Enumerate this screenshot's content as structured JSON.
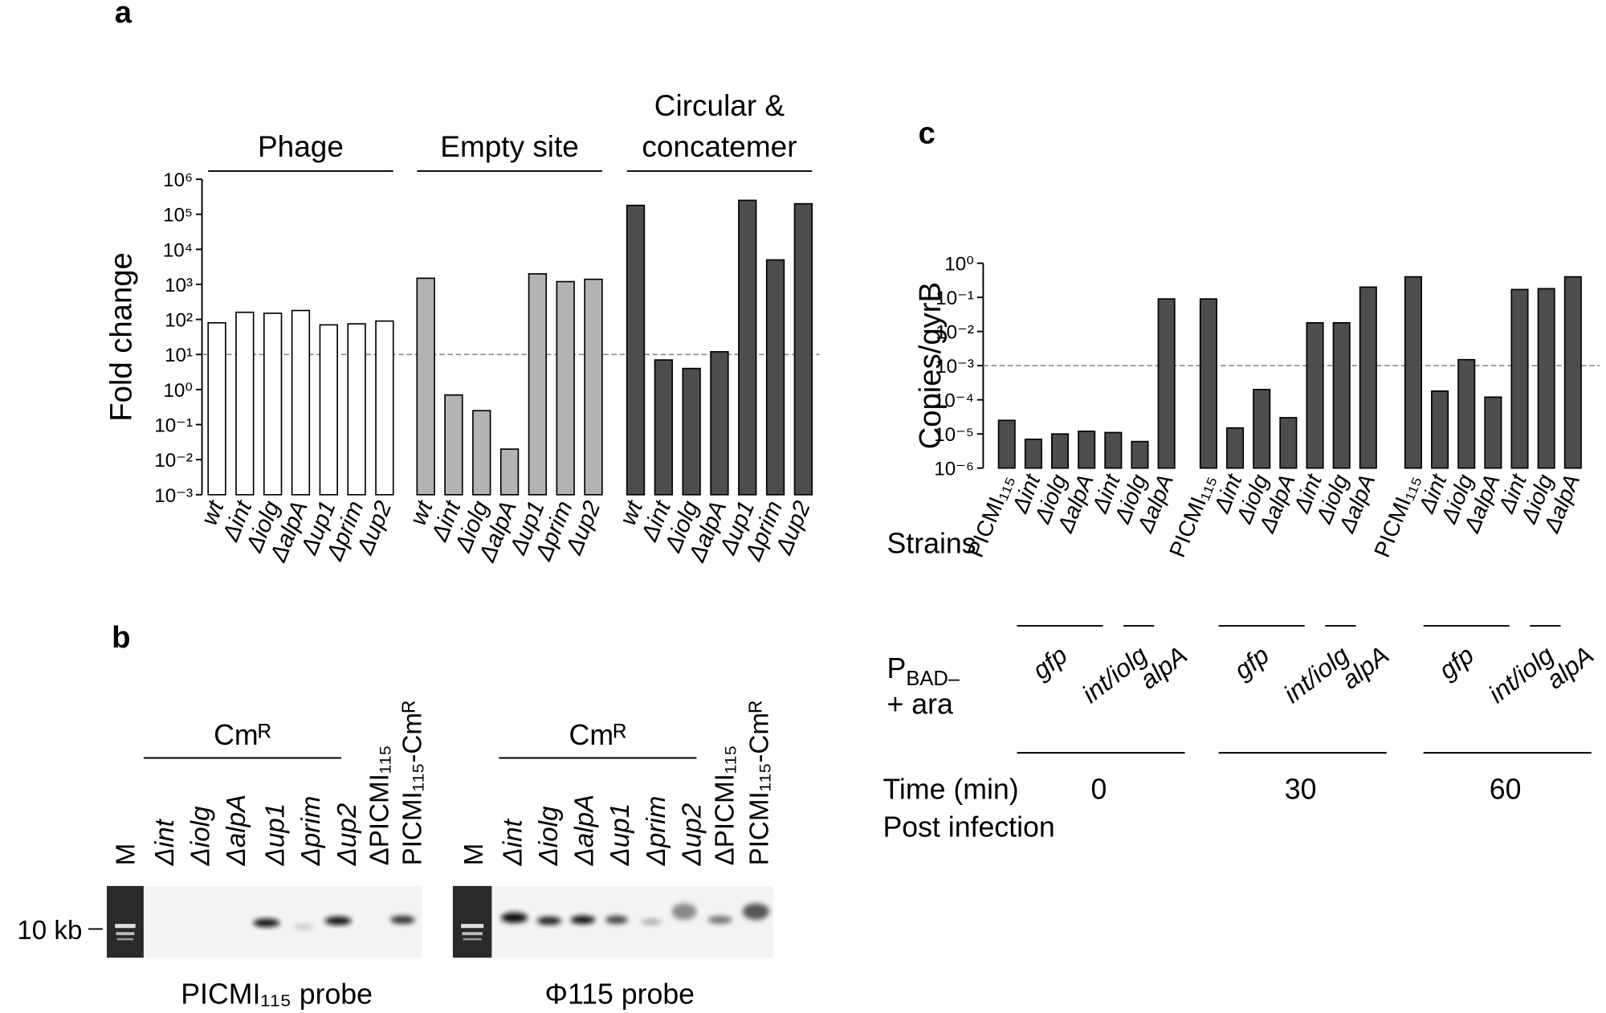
{
  "chart_data": [
    {
      "type": "bar",
      "panel": "a",
      "log_y": true,
      "ylabel": "Fold change",
      "ylim": [
        0.001,
        1000000
      ],
      "yticks": [
        {
          "value": 0.001,
          "label": "10⁻³"
        },
        {
          "value": 0.01,
          "label": "10⁻²"
        },
        {
          "value": 0.1,
          "label": "10⁻¹"
        },
        {
          "value": 1,
          "label": "10⁰"
        },
        {
          "value": 10,
          "label": "10¹"
        },
        {
          "value": 100,
          "label": "10²"
        },
        {
          "value": 1000,
          "label": "10³"
        },
        {
          "value": 10000,
          "label": "10⁴"
        },
        {
          "value": 100000,
          "label": "10⁵"
        },
        {
          "value": 1000000,
          "label": "10⁶"
        }
      ],
      "hline": 10,
      "groups": [
        {
          "label": [
            "Phage"
          ],
          "color": "#ffffff",
          "categories": [
            "wt",
            "Δint",
            "Δiolg",
            "ΔalpA",
            "Δup1",
            "Δprim",
            "Δup2"
          ],
          "values": [
            80,
            160,
            150,
            180,
            70,
            75,
            90
          ]
        },
        {
          "label": [
            "Empty site"
          ],
          "color": "#b3b3b3",
          "categories": [
            "wt",
            "Δint",
            "Δiolg",
            "ΔalpA",
            "Δup1",
            "Δprim",
            "Δup2"
          ],
          "values": [
            1500,
            0.7,
            0.25,
            0.02,
            2000,
            1200,
            1400
          ]
        },
        {
          "label": [
            "Circular &",
            "concatemer"
          ],
          "color": "#4d4d4d",
          "categories": [
            "wt",
            "Δint",
            "Δiolg",
            "ΔalpA",
            "Δup1",
            "Δprim",
            "Δup2"
          ],
          "values": [
            180000,
            7,
            4,
            12,
            250000,
            5000,
            200000
          ]
        }
      ]
    },
    {
      "type": "bar",
      "panel": "c",
      "log_y": true,
      "ylabel": "Copies/gyrB",
      "ylim": [
        1e-06,
        1
      ],
      "yticks": [
        {
          "value": 1e-06,
          "label": "10⁻⁶"
        },
        {
          "value": 1e-05,
          "label": "10⁻⁵"
        },
        {
          "value": 0.0001,
          "label": "10⁻⁴"
        },
        {
          "value": 0.001,
          "label": "10⁻³"
        },
        {
          "value": 0.01,
          "label": "10⁻²"
        },
        {
          "value": 0.1,
          "label": "10⁻¹"
        },
        {
          "value": 1,
          "label": "10⁰"
        }
      ],
      "hline": 0.001,
      "row_strains": "Strains",
      "row_promoter": {
        "text": "P",
        "sub": "BAD–"
      },
      "row_inducer": "+ ara",
      "row_time": "Time (min)",
      "row_time2": "Post infection",
      "groups": [
        {
          "time": "0",
          "color": "#4d4d4d",
          "categories": [
            "PICMI₁₁₅",
            "Δint",
            "Δiolg",
            "ΔalpA",
            "Δint",
            "Δiolg",
            "ΔalpA"
          ],
          "constructs": [
            "gfp",
            "int/iolg",
            "alpA"
          ],
          "values": [
            2.5e-05,
            7e-06,
            1e-05,
            1.2e-05,
            1.1e-05,
            6e-06,
            0.09
          ]
        },
        {
          "time": "30",
          "color": "#4d4d4d",
          "categories": [
            "PICMI₁₁₅",
            "Δint",
            "Δiolg",
            "ΔalpA",
            "Δint",
            "Δiolg",
            "ΔalpA"
          ],
          "constructs": [
            "gfp",
            "int/iolg",
            "alpA"
          ],
          "values": [
            0.09,
            1.5e-05,
            0.0002,
            3e-05,
            0.018,
            0.018,
            0.2
          ]
        },
        {
          "time": "60",
          "color": "#4d4d4d",
          "categories": [
            "PICMI₁₁₅",
            "Δint",
            "Δiolg",
            "ΔalpA",
            "Δint",
            "Δiolg",
            "ΔalpA"
          ],
          "constructs": [
            "gfp",
            "int/iolg",
            "alpA"
          ],
          "values": [
            0.4,
            0.00018,
            0.0015,
            0.00012,
            0.17,
            0.18,
            0.4
          ]
        }
      ]
    }
  ],
  "gel": {
    "panel": "b",
    "marker": "10 kb",
    "blots": [
      {
        "group": "Cmᴿ",
        "lanes": [
          "M",
          "Δint",
          "Δiolg",
          "ΔalpA",
          "Δup1",
          "Δprim",
          "Δup2",
          "ΔPICMI₁₁₅",
          "PICMI₁₁₅-Cmᴿ"
        ],
        "probe": "PICMI₁₁₅ probe"
      },
      {
        "group": "Cmᴿ",
        "lanes": [
          "M",
          "Δint",
          "Δiolg",
          "ΔalpA",
          "Δup1",
          "Δprim",
          "Δup2",
          "ΔPICMI₁₁₅",
          "PICMI₁₁₅-Cmᴿ"
        ],
        "probe": "Φ115 probe"
      }
    ]
  }
}
